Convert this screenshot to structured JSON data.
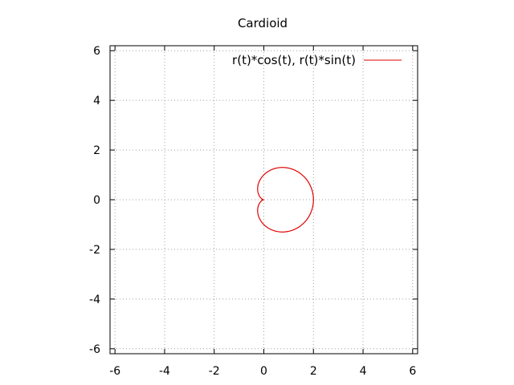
{
  "chart_data": {
    "type": "line",
    "title": "Cardioid",
    "xlabel": "",
    "ylabel": "",
    "xlim": [
      -6.2,
      6.2
    ],
    "ylim": [
      -6.2,
      6.2
    ],
    "xticks": [
      -6,
      -4,
      -2,
      0,
      2,
      4,
      6
    ],
    "yticks": [
      -6,
      -4,
      -2,
      0,
      2,
      4,
      6
    ],
    "grid": true,
    "legend_position": "top-right",
    "series": [
      {
        "name": "r(t)*cos(t), r(t)*sin(t)",
        "color": "#e00000",
        "r_equation": "1 + cos(t)",
        "t_range": [
          0,
          6.283185
        ]
      }
    ]
  }
}
